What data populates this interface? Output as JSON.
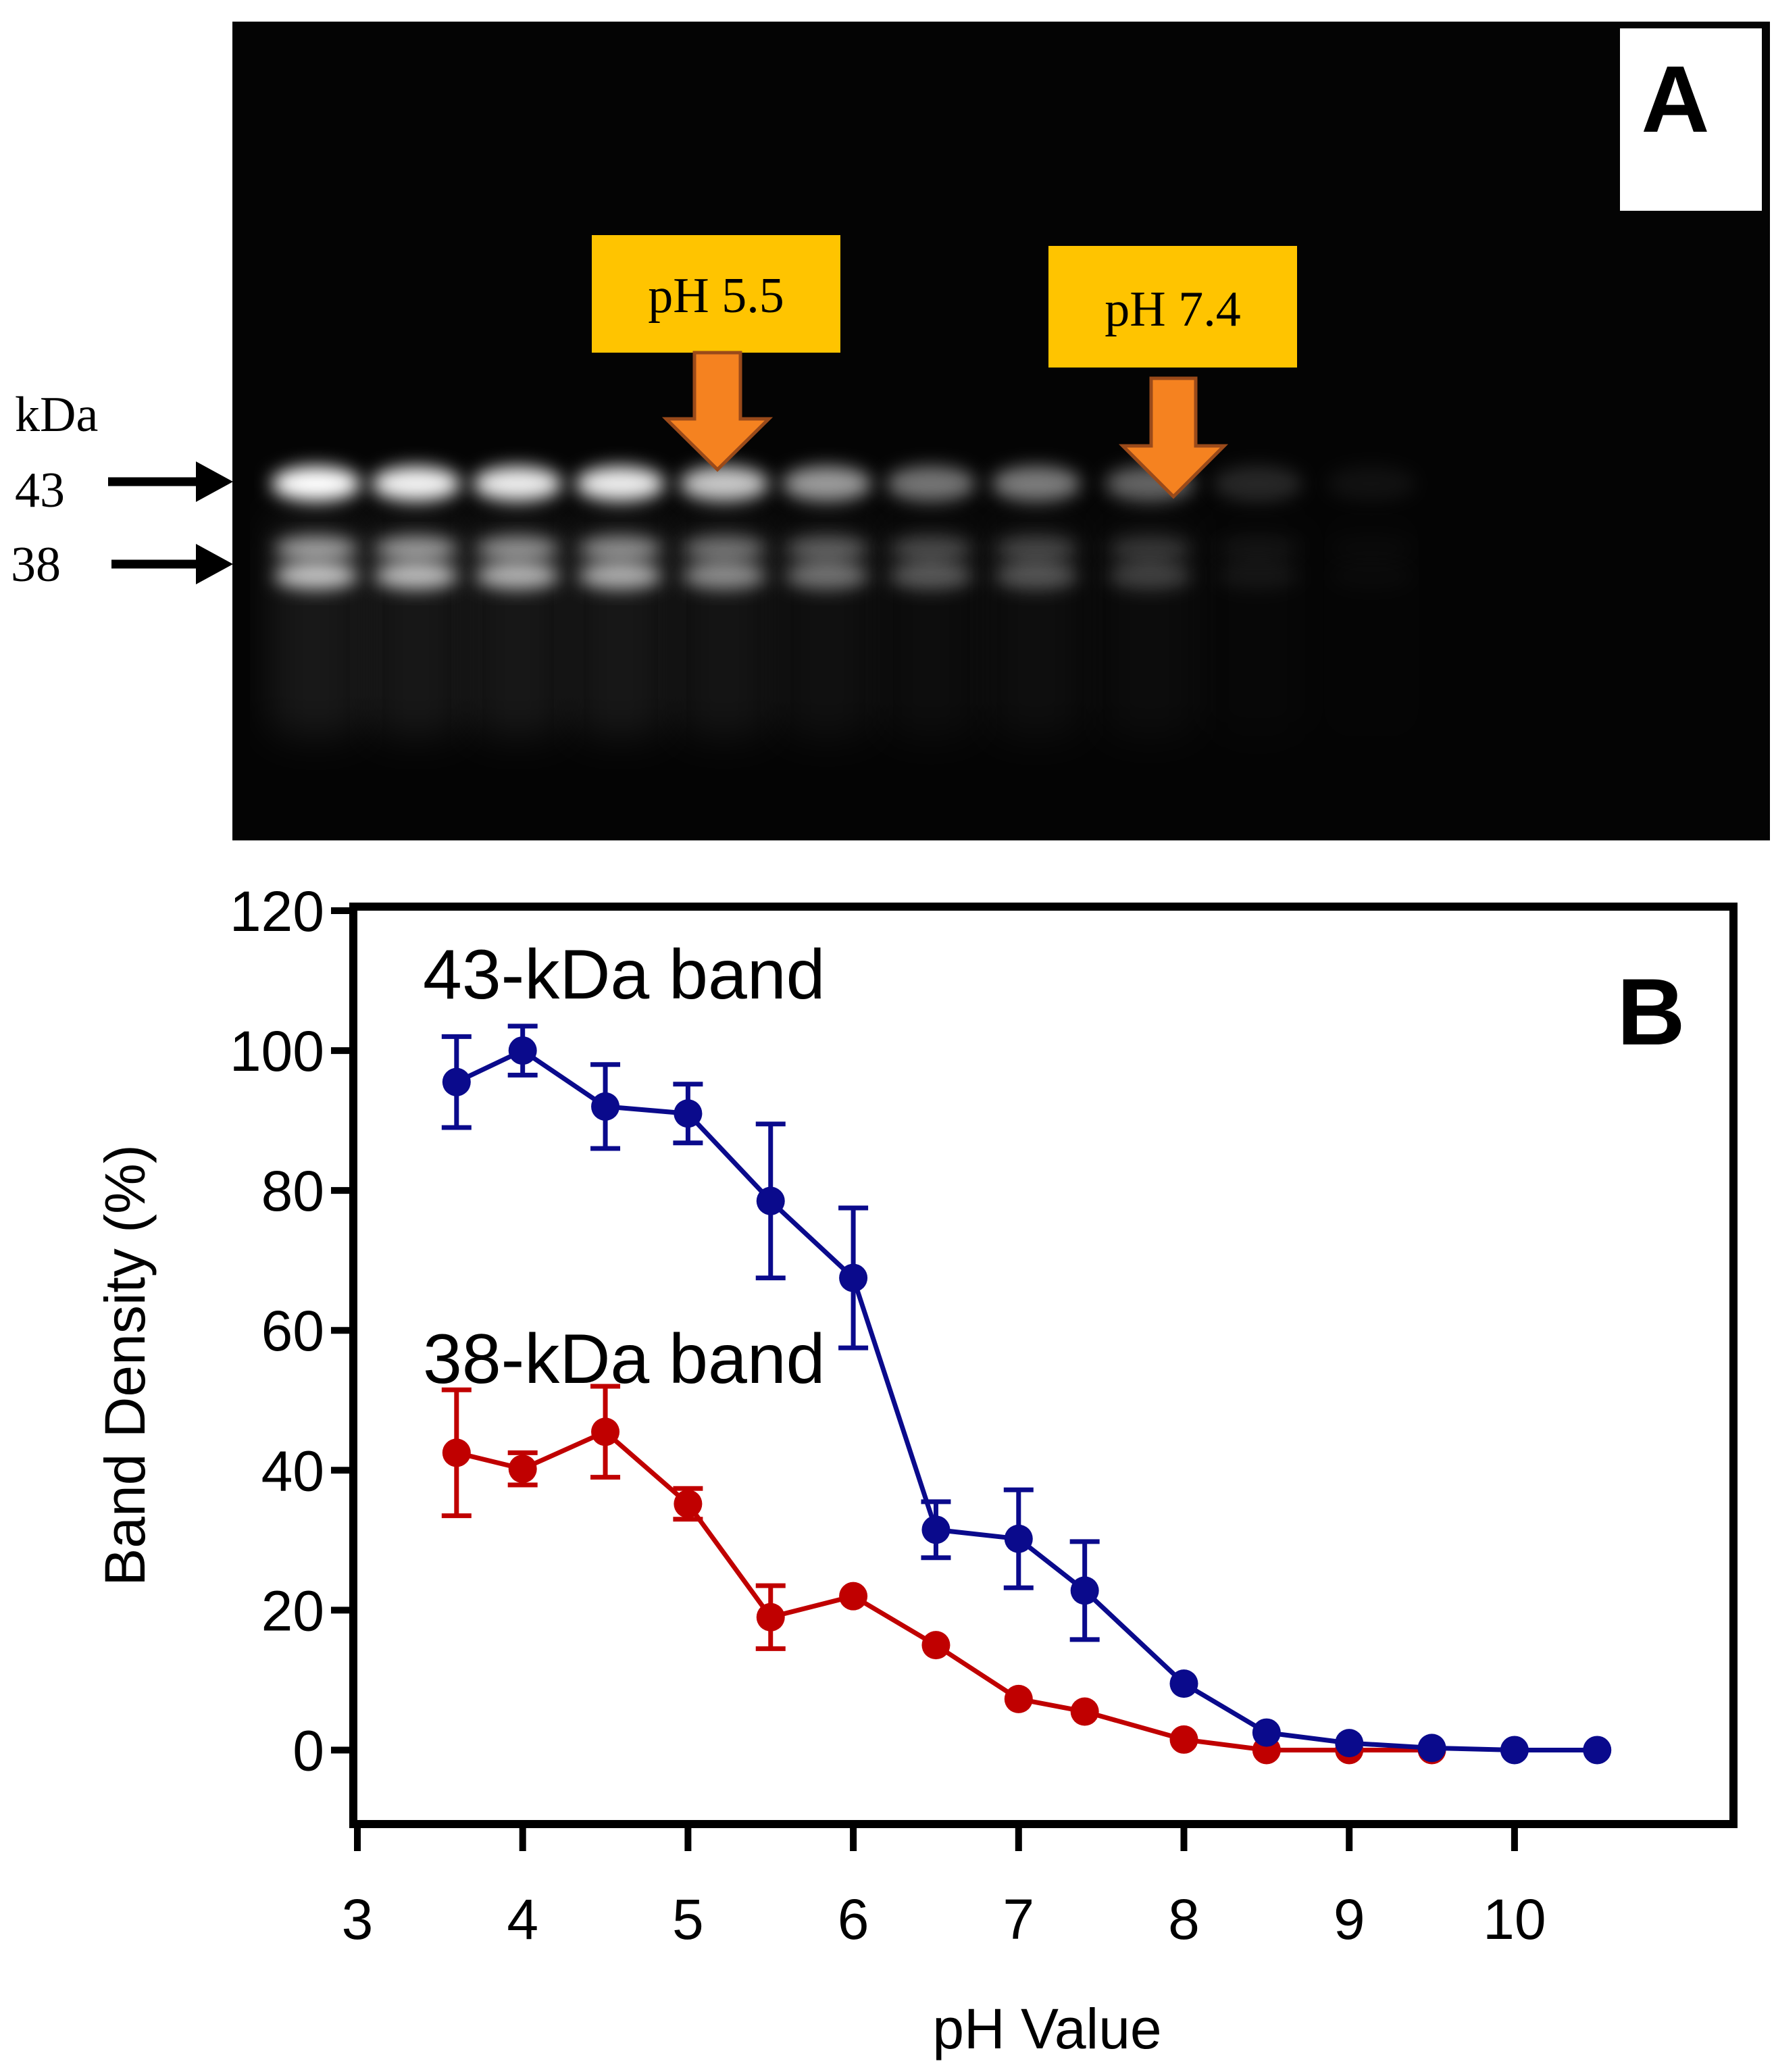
{
  "panel_a": {
    "panel_label": "A",
    "unit_label": "kDa",
    "markers": [
      {
        "label": "43"
      },
      {
        "label": "38"
      }
    ],
    "callouts": [
      {
        "label": "pH 5.5"
      },
      {
        "label": "pH 7.4"
      }
    ],
    "colors": {
      "gel_background": "#040404",
      "callout_box": "#ffc400",
      "callout_arrow": "#f58220",
      "callout_arrow_border": "#9a4a1a"
    }
  },
  "chart_data": {
    "type": "line",
    "panel_label": "B",
    "xlabel": "pH Value",
    "ylabel": "Band Density (%)",
    "xlim": [
      3,
      11.3
    ],
    "ylim": [
      -10,
      120
    ],
    "xticks": [
      3,
      4,
      5,
      6,
      7,
      8,
      9,
      10
    ],
    "yticks": [
      0,
      20,
      40,
      60,
      80,
      100,
      120
    ],
    "grid": false,
    "series": [
      {
        "name": "43-kDa band",
        "color": "#0a0a8c",
        "x": [
          3.6,
          4.0,
          4.5,
          5.0,
          5.5,
          6.0,
          6.5,
          7.0,
          7.4,
          8.0,
          8.5,
          9.0,
          9.5,
          10.0,
          10.5
        ],
        "y": [
          95.5,
          100,
          92,
          91,
          78.5,
          67.5,
          31.5,
          30.2,
          22.8,
          9.5,
          2.5,
          1.0,
          0.3,
          0,
          0
        ],
        "err": [
          6.5,
          3.5,
          6.0,
          4.2,
          11.0,
          10.0,
          4.0,
          7.0,
          7.0,
          0,
          0,
          0,
          0,
          0,
          0
        ]
      },
      {
        "name": "38-kDa band",
        "color": "#c00000",
        "x": [
          3.6,
          4.0,
          4.5,
          5.0,
          5.5,
          6.0,
          6.5,
          7.0,
          7.4,
          8.0,
          8.5,
          9.0,
          9.5
        ],
        "y": [
          42.5,
          40.2,
          45.5,
          35.2,
          19.0,
          22.0,
          15.0,
          7.3,
          5.5,
          1.5,
          0,
          0,
          0
        ],
        "err": [
          9.0,
          2.3,
          6.5,
          2.2,
          4.5,
          0,
          0,
          0,
          0,
          0,
          0,
          0,
          0
        ]
      }
    ]
  }
}
